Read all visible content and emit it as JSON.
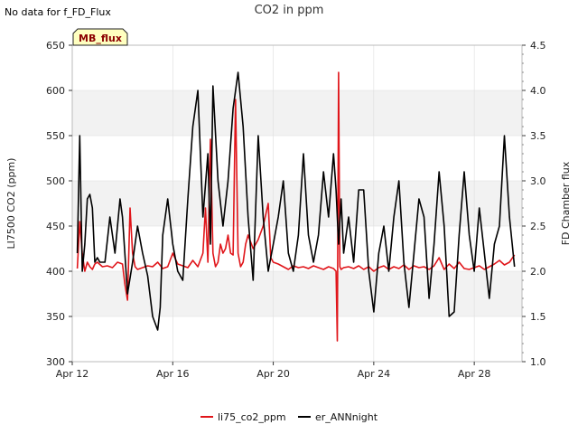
{
  "notes": {
    "top_left": "No data for f_FD_Flux"
  },
  "badge": {
    "label": "MB_flux"
  },
  "colors": {
    "series1": "#e0151a",
    "series2": "#000000",
    "band": "#f2f2f2",
    "grid": "#dddddd",
    "badge_bg": "#ffffc0"
  },
  "chart_data": {
    "type": "line",
    "title": "CO2 in ppm",
    "xlabel": "",
    "ylabel": "LI7500 CO2 (ppm)",
    "y2label": "FD Chamber flux",
    "xlim": [
      12.0,
      29.9
    ],
    "ylim": [
      300,
      650
    ],
    "y2lim": [
      1.0,
      4.5
    ],
    "x_ticks": [
      12,
      16,
      20,
      24,
      28
    ],
    "x_tick_labels": [
      "Apr 12",
      "Apr 16",
      "Apr 20",
      "Apr 24",
      "Apr 28"
    ],
    "y_ticks": [
      300,
      350,
      400,
      450,
      500,
      550,
      600,
      650
    ],
    "y_tick_labels": [
      "300",
      "350",
      "400",
      "450",
      "500",
      "550",
      "600",
      "650"
    ],
    "y2_ticks": [
      1.0,
      1.5,
      2.0,
      2.5,
      3.0,
      3.5,
      4.0,
      4.5
    ],
    "y2_tick_labels": [
      "1.0",
      "1.5",
      "2.0",
      "2.5",
      "3.0",
      "3.5",
      "4.0",
      "4.5"
    ],
    "legend": [
      "li75_co2_ppm",
      "er_ANNnight"
    ],
    "series": [
      {
        "name": "li75_co2_ppm",
        "axis": "left",
        "x": [
          12.2,
          12.3,
          12.4,
          12.5,
          12.6,
          12.7,
          12.8,
          12.9,
          13.0,
          13.2,
          13.4,
          13.6,
          13.8,
          14.0,
          14.1,
          14.2,
          14.3,
          14.4,
          14.5,
          14.6,
          14.8,
          15.0,
          15.2,
          15.4,
          15.6,
          15.8,
          16.0,
          16.2,
          16.4,
          16.6,
          16.8,
          17.0,
          17.2,
          17.3,
          17.4,
          17.5,
          17.6,
          17.7,
          17.8,
          17.9,
          18.0,
          18.1,
          18.2,
          18.3,
          18.4,
          18.5,
          18.6,
          18.7,
          18.8,
          18.9,
          19.0,
          19.2,
          19.4,
          19.6,
          19.8,
          19.9,
          20.0,
          20.2,
          20.4,
          20.6,
          20.8,
          21.0,
          21.2,
          21.4,
          21.6,
          21.8,
          22.0,
          22.2,
          22.4,
          22.5,
          22.55,
          22.6,
          22.65,
          22.7,
          22.8,
          23.0,
          23.2,
          23.4,
          23.6,
          23.8,
          24.0,
          24.2,
          24.4,
          24.6,
          24.8,
          25.0,
          25.2,
          25.4,
          25.6,
          25.8,
          26.0,
          26.2,
          26.4,
          26.6,
          26.8,
          27.0,
          27.2,
          27.4,
          27.6,
          27.8,
          28.0,
          28.2,
          28.4,
          28.6,
          28.8,
          29.0,
          29.2,
          29.4,
          29.6
        ],
        "values": [
          403,
          455,
          420,
          400,
          410,
          405,
          402,
          408,
          410,
          405,
          406,
          404,
          410,
          408,
          385,
          368,
          470,
          420,
          405,
          402,
          404,
          406,
          405,
          410,
          403,
          405,
          420,
          408,
          406,
          404,
          412,
          405,
          420,
          470,
          410,
          546,
          420,
          405,
          410,
          430,
          420,
          425,
          440,
          420,
          418,
          590,
          420,
          405,
          410,
          430,
          440,
          425,
          435,
          450,
          475,
          415,
          410,
          408,
          405,
          402,
          406,
          404,
          405,
          403,
          406,
          404,
          402,
          405,
          403,
          400,
          323,
          620,
          405,
          402,
          404,
          405,
          403,
          406,
          402,
          405,
          400,
          404,
          406,
          402,
          405,
          403,
          407,
          402,
          406,
          404,
          405,
          402,
          406,
          415,
          402,
          408,
          403,
          410,
          403,
          402,
          404,
          406,
          402,
          405,
          408,
          412,
          407,
          410,
          418
        ]
      },
      {
        "name": "er_ANNnight",
        "axis": "right",
        "x": [
          12.2,
          12.3,
          12.4,
          12.5,
          12.6,
          12.7,
          12.8,
          12.9,
          13.0,
          13.1,
          13.3,
          13.5,
          13.7,
          13.9,
          14.0,
          14.2,
          14.4,
          14.6,
          14.8,
          15.0,
          15.2,
          15.4,
          15.5,
          15.6,
          15.8,
          16.0,
          16.2,
          16.4,
          16.6,
          16.8,
          17.0,
          17.2,
          17.4,
          17.5,
          17.6,
          17.8,
          18.0,
          18.2,
          18.4,
          18.6,
          18.8,
          19.0,
          19.2,
          19.4,
          19.6,
          19.8,
          20.0,
          20.2,
          20.4,
          20.6,
          20.8,
          21.0,
          21.2,
          21.4,
          21.6,
          21.8,
          22.0,
          22.2,
          22.4,
          22.5,
          22.6,
          22.7,
          22.8,
          23.0,
          23.2,
          23.4,
          23.6,
          23.8,
          24.0,
          24.2,
          24.4,
          24.6,
          24.8,
          25.0,
          25.2,
          25.4,
          25.6,
          25.8,
          26.0,
          26.2,
          26.4,
          26.6,
          26.8,
          27.0,
          27.2,
          27.4,
          27.6,
          27.8,
          28.0,
          28.2,
          28.4,
          28.6,
          28.8,
          29.0,
          29.2,
          29.4,
          29.6
        ],
        "values": [
          2.2,
          3.5,
          2.0,
          2.3,
          2.8,
          2.85,
          2.7,
          2.1,
          2.15,
          2.1,
          2.1,
          2.6,
          2.2,
          2.8,
          2.6,
          1.75,
          2.1,
          2.5,
          2.2,
          1.95,
          1.5,
          1.35,
          1.6,
          2.4,
          2.8,
          2.3,
          2.0,
          1.9,
          2.8,
          3.6,
          4.0,
          2.6,
          3.3,
          2.3,
          4.05,
          3.0,
          2.5,
          3.0,
          3.8,
          4.2,
          3.6,
          2.6,
          1.9,
          3.5,
          2.6,
          2.0,
          2.3,
          2.6,
          3.0,
          2.2,
          2.0,
          2.4,
          3.3,
          2.4,
          2.1,
          2.4,
          3.1,
          2.6,
          3.3,
          2.9,
          2.3,
          2.8,
          2.2,
          2.6,
          2.1,
          2.9,
          2.9,
          2.0,
          1.55,
          2.2,
          2.5,
          2.0,
          2.6,
          3.0,
          2.1,
          1.6,
          2.2,
          2.8,
          2.6,
          1.7,
          2.3,
          3.1,
          2.5,
          1.5,
          1.55,
          2.4,
          3.1,
          2.4,
          2.0,
          2.7,
          2.2,
          1.7,
          2.3,
          2.5,
          3.5,
          2.6,
          2.05
        ]
      }
    ]
  }
}
